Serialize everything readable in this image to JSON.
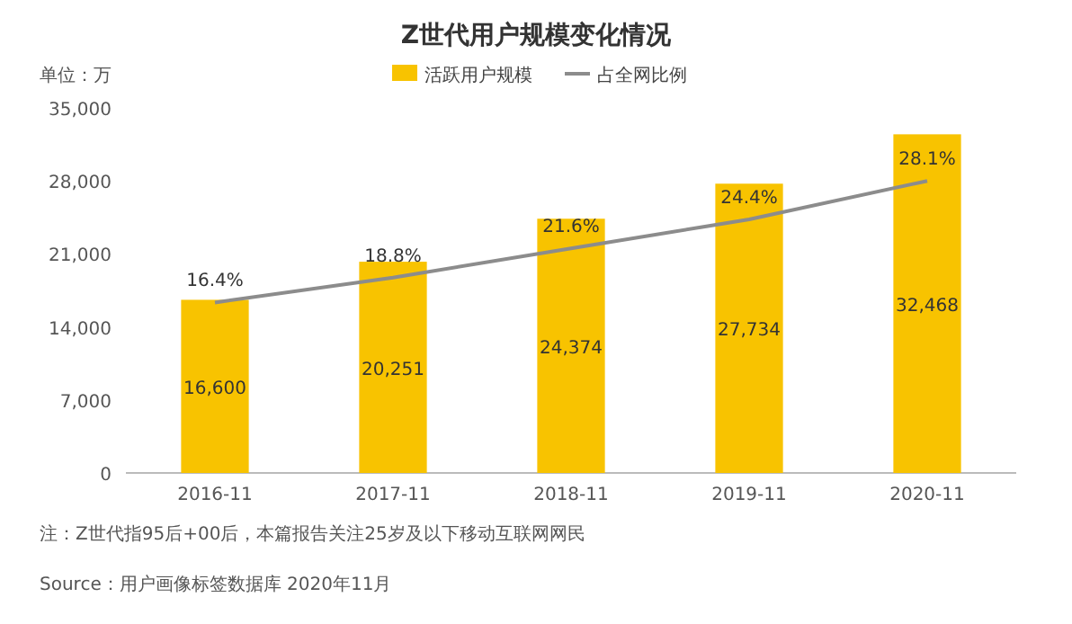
{
  "chart_data": {
    "type": "bar",
    "title": "Z世代用户规模变化情况",
    "categories": [
      "2016-11",
      "2017-11",
      "2018-11",
      "2019-11",
      "2020-11"
    ],
    "series": [
      {
        "name": "活跃用户规模",
        "color": "#f8c300",
        "values": [
          16600,
          20251,
          24374,
          27734,
          32468
        ],
        "value_labels": [
          "16,600",
          "20,251",
          "24,374",
          "27,734",
          "32,468"
        ]
      },
      {
        "name": "占全网比例",
        "type": "line",
        "axis": "y2",
        "color": "#8c8c8c",
        "values": [
          16.4,
          18.8,
          21.6,
          24.4,
          28.1
        ],
        "value_labels": [
          "16.4%",
          "18.8%",
          "21.6%",
          "24.4%",
          "28.1%"
        ]
      }
    ],
    "ylim": [
      0,
      35000
    ],
    "yticks": [
      0,
      {
        "value": 7000,
        "label": "7,000"
      },
      {
        "value": 14000,
        "label": "14,000"
      },
      {
        "value": 21000,
        "label": "21,000"
      },
      {
        "value": 28000,
        "label": "28,000"
      },
      {
        "value": 35000,
        "label": "35,000"
      }
    ],
    "legend": "top",
    "marker": "none",
    "line_style": "solid",
    "annotations": [
      "单位：万",
      "注：Z世代指95后+00后，本篇报告关注25岁及以下移动互联网网民",
      "Source：用户画像标签数据库 2020年11月"
    ]
  }
}
